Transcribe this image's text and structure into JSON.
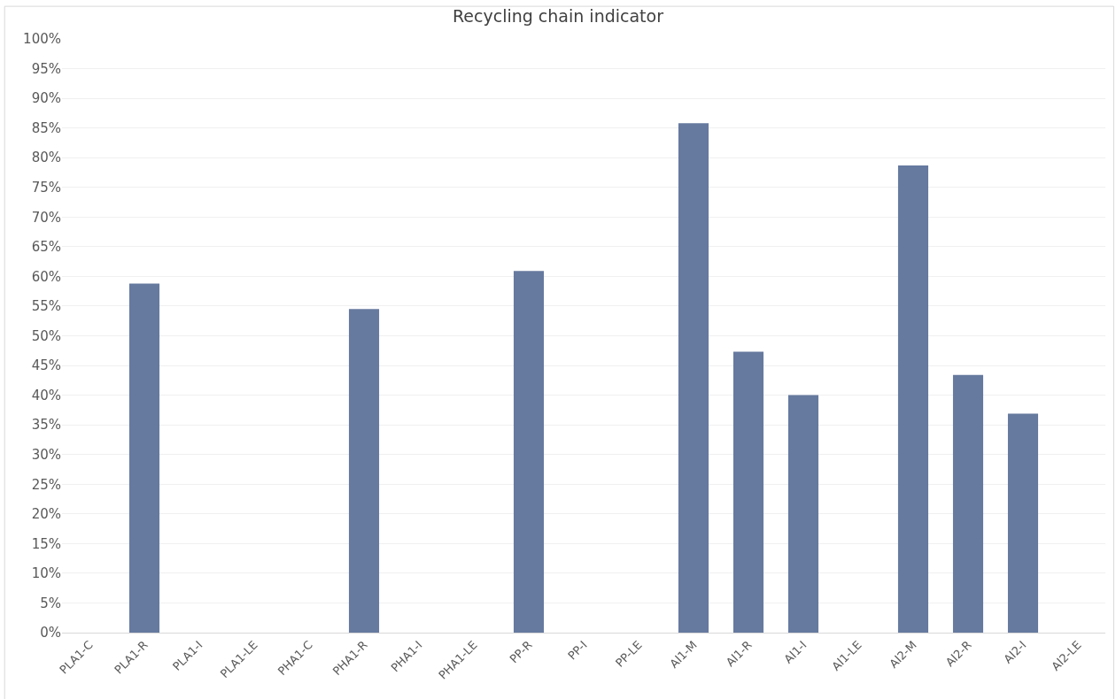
{
  "chart_data": {
    "type": "bar",
    "title": "Recycling chain indicator",
    "categories": [
      "PLA1-C",
      "PLA1-R",
      "PLA1-I",
      "PLA1-LE",
      "PHA1-C",
      "PHA1-R",
      "PHA1-I",
      "PHA1-LE",
      "PP-R",
      "PP-I",
      "PP-LE",
      "Al1-M",
      "Al1-R",
      "Al1-I",
      "Al1-LE",
      "Al2-M",
      "Al2-R",
      "Al2-I",
      "Al2-LE"
    ],
    "values": [
      0,
      58.8,
      0,
      0,
      0,
      54.5,
      0,
      0,
      60.9,
      0,
      0,
      85.8,
      47.3,
      40.0,
      0,
      78.7,
      43.4,
      36.9,
      0
    ],
    "color": "#667a9f",
    "ylim": [
      0,
      100
    ],
    "yticks": [
      {
        "value": 0,
        "label": "0%"
      },
      {
        "value": 5,
        "label": "5%"
      },
      {
        "value": 10,
        "label": "10%"
      },
      {
        "value": 15,
        "label": "15%"
      },
      {
        "value": 20,
        "label": "20%"
      },
      {
        "value": 25,
        "label": "25%"
      },
      {
        "value": 30,
        "label": "30%"
      },
      {
        "value": 35,
        "label": "35%"
      },
      {
        "value": 40,
        "label": "40%"
      },
      {
        "value": 45,
        "label": "45%"
      },
      {
        "value": 50,
        "label": "50%"
      },
      {
        "value": 55,
        "label": "55%"
      },
      {
        "value": 60,
        "label": "60%"
      },
      {
        "value": 65,
        "label": "65%"
      },
      {
        "value": 70,
        "label": "70%"
      },
      {
        "value": 75,
        "label": "75%"
      },
      {
        "value": 80,
        "label": "80%"
      },
      {
        "value": 85,
        "label": "85%"
      },
      {
        "value": 90,
        "label": "90%"
      },
      {
        "value": 95,
        "label": "95%"
      },
      {
        "value": 100,
        "label": "100%"
      }
    ],
    "grid": "y"
  }
}
